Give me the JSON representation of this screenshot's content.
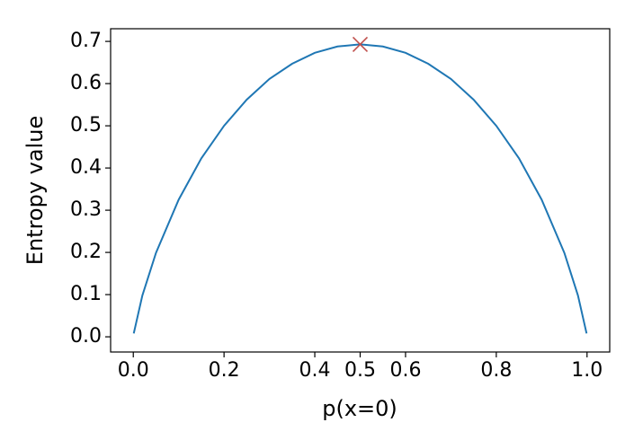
{
  "chart_data": {
    "type": "line",
    "xlabel": "p(x=0)",
    "ylabel": "Entropy value",
    "x": [
      0.001,
      0.02,
      0.05,
      0.1,
      0.15,
      0.2,
      0.25,
      0.3,
      0.35,
      0.4,
      0.45,
      0.5,
      0.55,
      0.6,
      0.65,
      0.7,
      0.75,
      0.8,
      0.85,
      0.9,
      0.95,
      0.98,
      0.999
    ],
    "values": [
      0.008,
      0.098,
      0.199,
      0.325,
      0.423,
      0.5,
      0.562,
      0.611,
      0.647,
      0.673,
      0.688,
      0.693,
      0.688,
      0.673,
      0.647,
      0.611,
      0.562,
      0.5,
      0.423,
      0.325,
      0.199,
      0.098,
      0.008
    ],
    "color": "#1f77b4",
    "highlight": {
      "x": 0.5,
      "y": 0.693,
      "color": "#c0504d"
    },
    "xlim": [
      -0.05,
      1.05
    ],
    "ylim": [
      -0.036,
      0.73
    ],
    "xticks": [
      {
        "value": 0,
        "label": "0.0"
      },
      0.2,
      0.4,
      0.5,
      0.6,
      0.8,
      {
        "value": 1,
        "label": "1.0"
      }
    ],
    "yticks": [
      {
        "value": 0,
        "label": "0.0"
      },
      0.1,
      0.2,
      0.3,
      0.4,
      0.5,
      0.6,
      0.7
    ]
  }
}
